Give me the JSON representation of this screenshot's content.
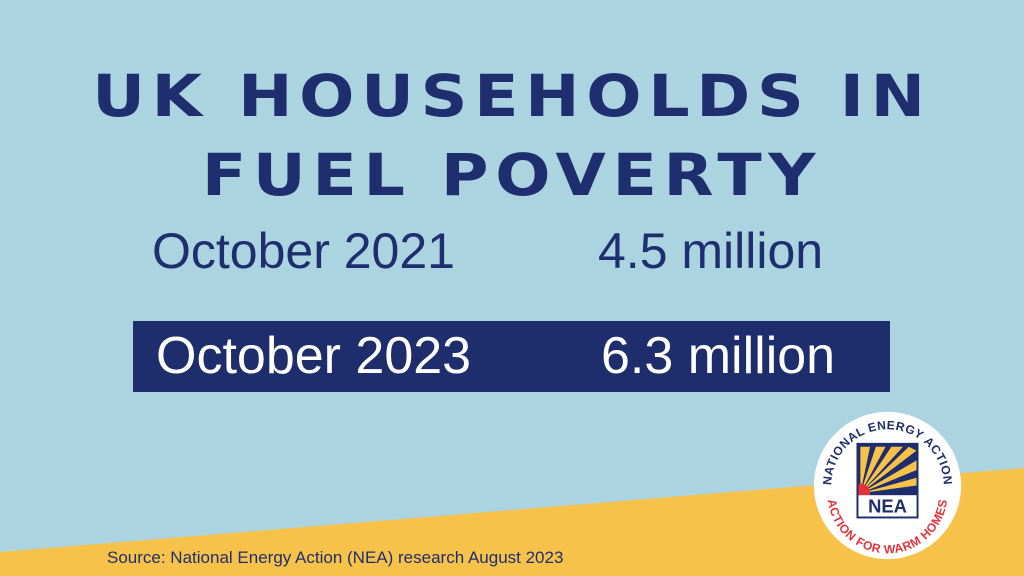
{
  "headline": {
    "line1": "UK HOUSEHOLDS IN",
    "line2": "FUEL POVERTY"
  },
  "rows": [
    {
      "date": "October 2021",
      "value": "4.5 million"
    },
    {
      "date": "October 2023",
      "value": "6.3 million"
    }
  ],
  "source": "Source: National Energy Action (NEA) research August 2023",
  "logo": {
    "top_text": "NATIONAL ENERGY ACTION",
    "bottom_text": "ACTION FOR WARM HOMES",
    "acronym": "NEA"
  },
  "colors": {
    "background": "#abd3e0",
    "navy": "#1e2d6b",
    "yellow": "#f7c24a",
    "red": "#e3323a"
  }
}
